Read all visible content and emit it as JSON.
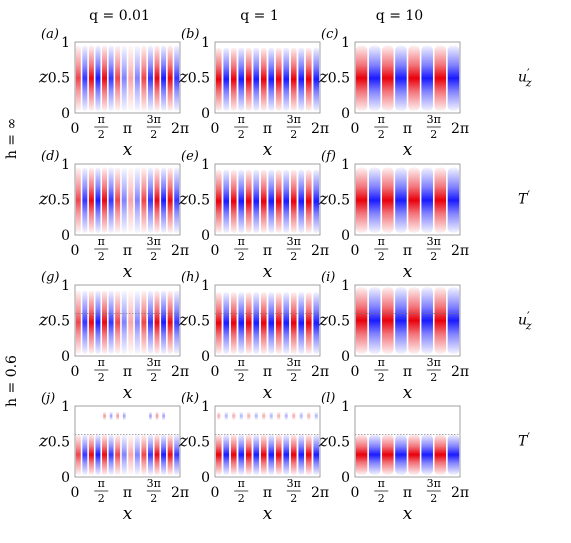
{
  "figure": {
    "column_titles": [
      "q = 0.01",
      "q = 1",
      "q = 10"
    ],
    "row_groups": [
      {
        "label": "h = ∞",
        "rows": [
          0,
          1
        ]
      },
      {
        "label": "h = 0.6",
        "rows": [
          2,
          3
        ]
      }
    ],
    "row_fields": [
      {
        "base": "u",
        "prime": "′",
        "sub": "z"
      },
      {
        "base": "T",
        "prime": "′",
        "sub": ""
      },
      {
        "base": "u",
        "prime": "′",
        "sub": "z"
      },
      {
        "base": "T",
        "prime": "′",
        "sub": ""
      }
    ],
    "x_axis_label": "x",
    "y_axis_letter": "z",
    "x_ticks": [
      {
        "value": 0,
        "label": "0"
      },
      {
        "value": 1.5708,
        "label": "π/2"
      },
      {
        "value": 3.1416,
        "label": "π"
      },
      {
        "value": 4.7124,
        "label": "3π/2"
      },
      {
        "value": 6.2832,
        "label": "2π"
      }
    ],
    "y_ticks": [
      {
        "value": 0,
        "label": "0"
      },
      {
        "value": 0.5,
        "label": "0.5"
      },
      {
        "value": 1,
        "label": "1"
      }
    ],
    "colors": {
      "positive": "#e8000b",
      "negative": "#1a1aff",
      "frame": "#8a8a8a"
    }
  },
  "chart_data": [
    {
      "type": "heatmap",
      "panel": "(a)",
      "q": 0.01,
      "h": "∞",
      "field": "u′z",
      "xlim": [
        0,
        6.2832
      ],
      "ylim": [
        0,
        1
      ],
      "cells_across": 16,
      "interface_z": null
    },
    {
      "type": "heatmap",
      "panel": "(b)",
      "q": 1,
      "h": "∞",
      "field": "u′z",
      "xlim": [
        0,
        6.2832
      ],
      "ylim": [
        0,
        1
      ],
      "cells_across": 14,
      "interface_z": null
    },
    {
      "type": "heatmap",
      "panel": "(c)",
      "q": 10,
      "h": "∞",
      "field": "u′z",
      "xlim": [
        0,
        6.2832
      ],
      "ylim": [
        0,
        1
      ],
      "cells_across": 8,
      "interface_z": null
    },
    {
      "type": "heatmap",
      "panel": "(d)",
      "q": 0.01,
      "h": "∞",
      "field": "T′",
      "xlim": [
        0,
        6.2832
      ],
      "ylim": [
        0,
        1
      ],
      "cells_across": 16,
      "interface_z": null
    },
    {
      "type": "heatmap",
      "panel": "(e)",
      "q": 1,
      "h": "∞",
      "field": "T′",
      "xlim": [
        0,
        6.2832
      ],
      "ylim": [
        0,
        1
      ],
      "cells_across": 14,
      "interface_z": null
    },
    {
      "type": "heatmap",
      "panel": "(f)",
      "q": 10,
      "h": "∞",
      "field": "T′",
      "xlim": [
        0,
        6.2832
      ],
      "ylim": [
        0,
        1
      ],
      "cells_across": 8,
      "interface_z": null
    },
    {
      "type": "heatmap",
      "panel": "(g)",
      "q": 0.01,
      "h": 0.6,
      "field": "u′z",
      "xlim": [
        0,
        6.2832
      ],
      "ylim": [
        0,
        1
      ],
      "cells_across": 16,
      "interface_z": 0.6
    },
    {
      "type": "heatmap",
      "panel": "(h)",
      "q": 1,
      "h": 0.6,
      "field": "u′z",
      "xlim": [
        0,
        6.2832
      ],
      "ylim": [
        0,
        1
      ],
      "cells_across": 14,
      "interface_z": 0.6
    },
    {
      "type": "heatmap",
      "panel": "(i)",
      "q": 10,
      "h": 0.6,
      "field": "u′z",
      "xlim": [
        0,
        6.2832
      ],
      "ylim": [
        0,
        1
      ],
      "cells_across": 8,
      "interface_z": 0.6
    },
    {
      "type": "heatmap",
      "panel": "(j)",
      "q": 0.01,
      "h": 0.6,
      "field": "T′",
      "xlim": [
        0,
        6.2832
      ],
      "ylim": [
        0,
        1
      ],
      "cells_across": 16,
      "interface_z": 0.6
    },
    {
      "type": "heatmap",
      "panel": "(k)",
      "q": 1,
      "h": 0.6,
      "field": "T′",
      "xlim": [
        0,
        6.2832
      ],
      "ylim": [
        0,
        1
      ],
      "cells_across": 14,
      "interface_z": 0.6
    },
    {
      "type": "heatmap",
      "panel": "(l)",
      "q": 10,
      "h": 0.6,
      "field": "T′",
      "xlim": [
        0,
        6.2832
      ],
      "ylim": [
        0,
        1
      ],
      "cells_across": 8,
      "interface_z": 0.6
    }
  ]
}
